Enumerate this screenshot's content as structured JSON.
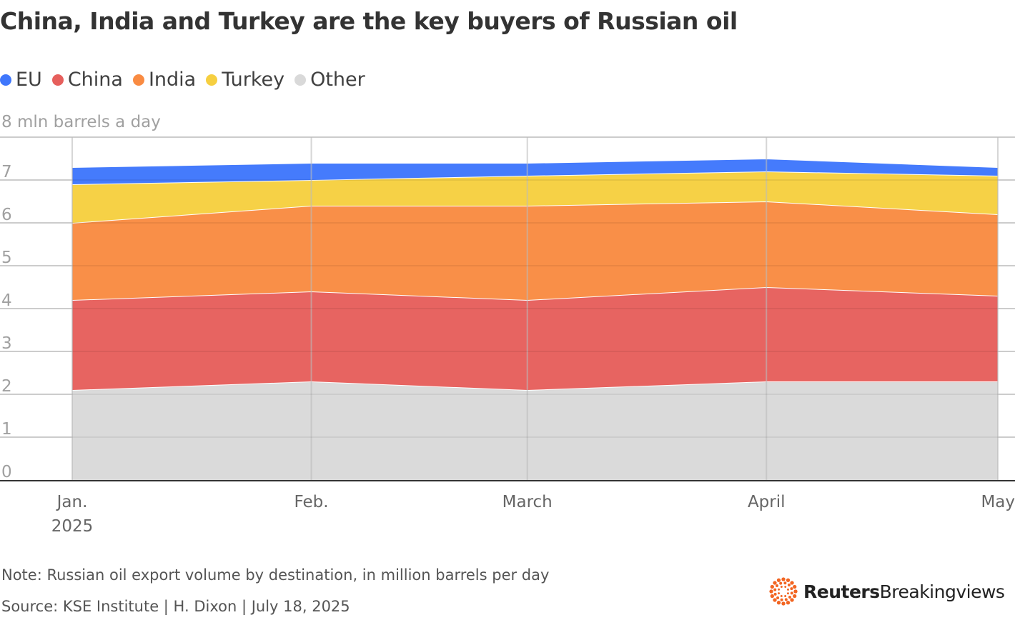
{
  "chart_data": {
    "type": "area",
    "stacked": true,
    "title": "China, India and Turkey are the key buyers of Russian oil",
    "ylabel": "8 mln barrels a day",
    "ylim": [
      0,
      8
    ],
    "yticks": [
      "0",
      "1",
      "2",
      "3",
      "4",
      "5",
      "6",
      "7"
    ],
    "grid": true,
    "legend_position": "top-left",
    "x": [
      "2025-01",
      "2025-02",
      "2025-03",
      "2025-04",
      "2025-05"
    ],
    "x_day_offsets_note": null,
    "xtick_labels": [
      [
        "Jan.",
        "2025"
      ],
      [
        "Feb."
      ],
      [
        "March"
      ],
      [
        "April"
      ],
      [
        "May"
      ]
    ],
    "series": [
      {
        "name": "Other",
        "color": "#d9d9d9",
        "values": [
          2.1,
          2.3,
          2.1,
          2.3,
          2.3
        ]
      },
      {
        "name": "China",
        "color": "#e65f5c",
        "values": [
          2.1,
          2.1,
          2.1,
          2.2,
          2.0
        ]
      },
      {
        "name": "India",
        "color": "#f98b42",
        "values": [
          1.8,
          2.0,
          2.2,
          2.0,
          1.9
        ]
      },
      {
        "name": "Turkey",
        "color": "#f6cf40",
        "values": [
          0.9,
          0.6,
          0.7,
          0.7,
          0.9
        ]
      },
      {
        "name": "EU",
        "color": "#3f77fc",
        "values": [
          0.4,
          0.4,
          0.3,
          0.3,
          0.2
        ]
      }
    ],
    "legend_order": [
      "EU",
      "China",
      "India",
      "Turkey",
      "Other"
    ]
  },
  "footer": {
    "note": "Note: Russian oil export volume by destination, in million barrels per day",
    "source": "Source: KSE Institute | H. Dixon | July 18, 2025",
    "logo_bold": "Reuters",
    "logo_light": "Breakingviews",
    "logo_color": "#f26522"
  }
}
